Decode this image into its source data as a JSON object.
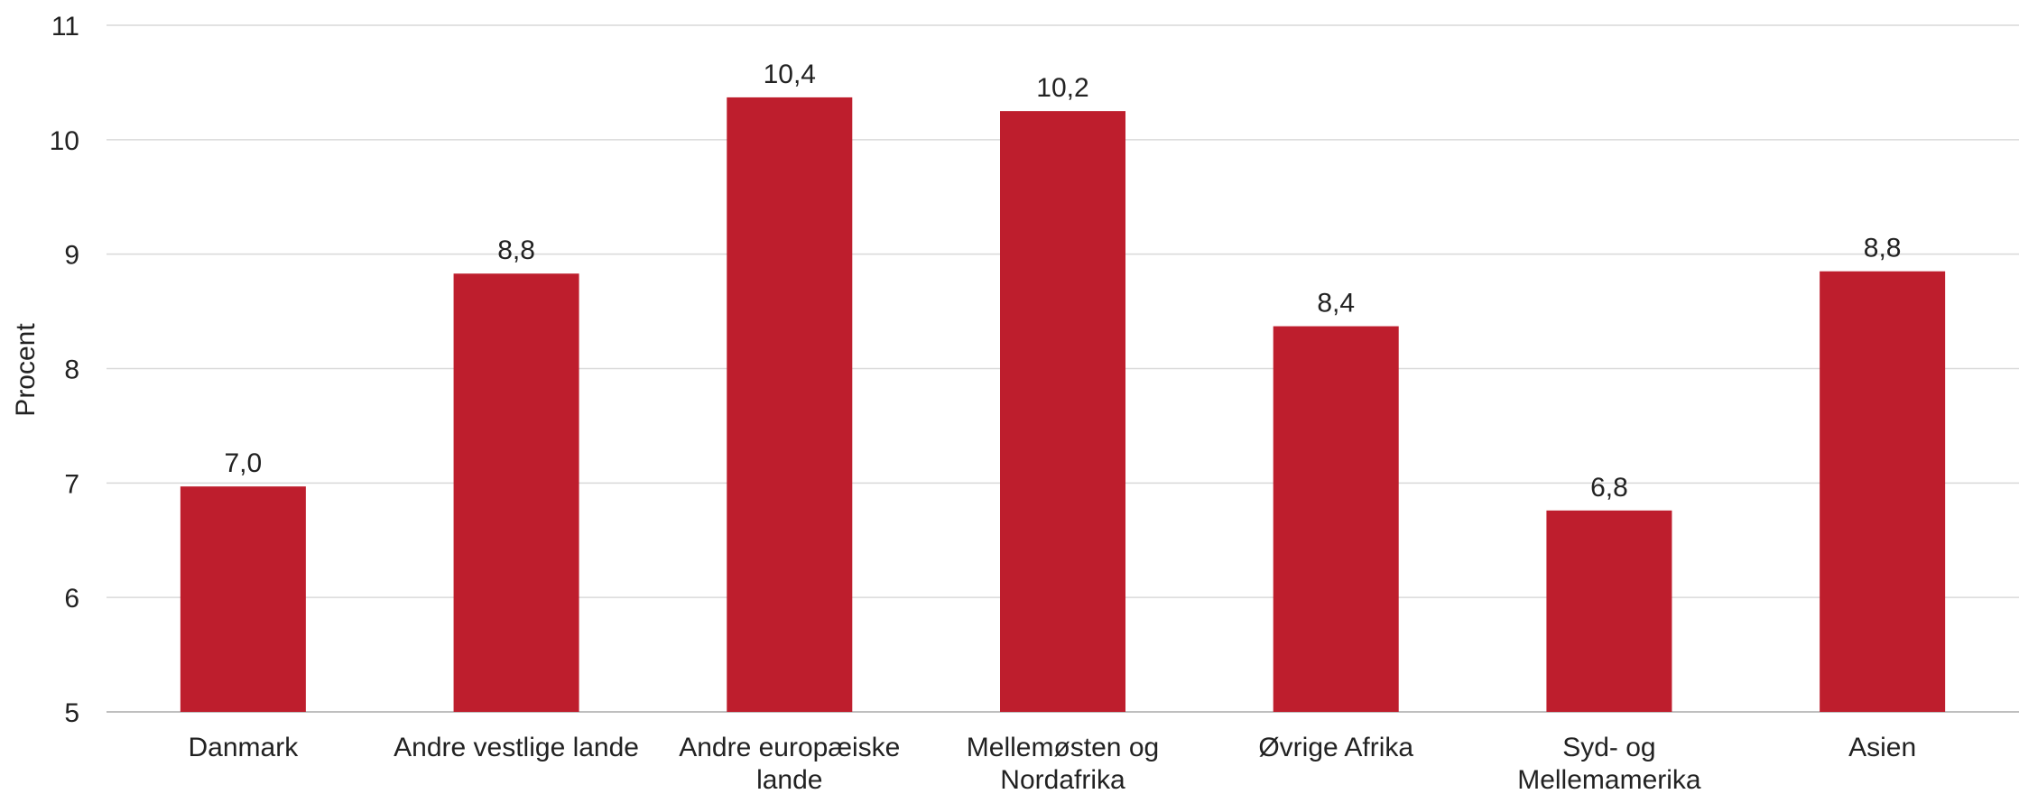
{
  "chart_data": {
    "type": "bar",
    "title": "",
    "xlabel": "",
    "ylabel": "Procent",
    "ylim": [
      5,
      11
    ],
    "yticks": [
      5,
      6,
      7,
      8,
      9,
      10,
      11
    ],
    "grid": true,
    "legend": "none",
    "bar_color": "#be1e2d",
    "categories": [
      [
        "Danmark"
      ],
      [
        "Andre vestlige lande"
      ],
      [
        "Andre europæiske",
        "lande"
      ],
      [
        "Mellemøsten og",
        "Nordafrika"
      ],
      [
        "Øvrige Afrika"
      ],
      [
        "Syd- og",
        "Mellemamerika"
      ],
      [
        "Asien"
      ]
    ],
    "values": [
      6.97,
      8.83,
      10.37,
      10.25,
      8.37,
      6.76,
      8.85
    ],
    "value_labels": [
      "7,0",
      "8,8",
      "10,4",
      "10,2",
      "8,4",
      "6,8",
      "8,8"
    ]
  }
}
